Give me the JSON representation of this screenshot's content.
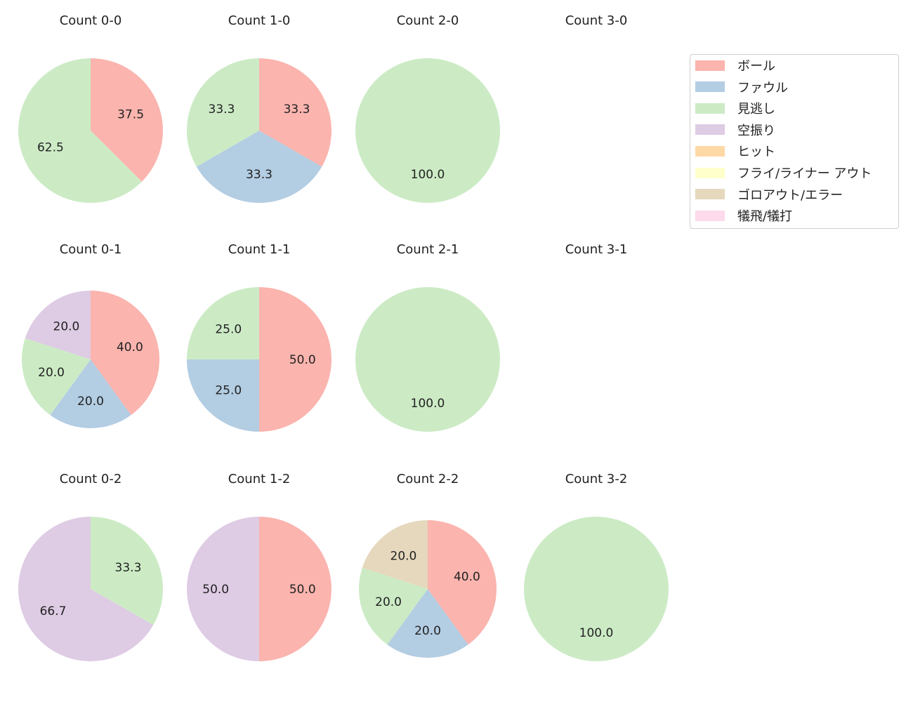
{
  "chart_data": {
    "type": "pie",
    "categories": [
      "ボール",
      "ファウル",
      "見逃し",
      "空振り",
      "ヒット",
      "フライ/ライナー アウト",
      "ゴロアウト/エラー",
      "犠飛/犠打"
    ],
    "colors": [
      "#fbb4ae",
      "#b3cde3",
      "#ccebc5",
      "#decbe4",
      "#fed9a6",
      "#ffffcc",
      "#e5d8bd",
      "#fddaec"
    ],
    "legend_position": "right",
    "start_angle": 90,
    "direction": "clockwise",
    "charts": [
      {
        "title": "Count 0-0",
        "values": [
          37.5,
          0,
          62.5,
          0,
          0,
          0,
          0,
          0
        ]
      },
      {
        "title": "Count 1-0",
        "values": [
          33.3,
          33.3,
          33.3,
          0,
          0,
          0,
          0,
          0
        ]
      },
      {
        "title": "Count 2-0",
        "values": [
          0,
          0,
          100,
          0,
          0,
          0,
          0,
          0
        ]
      },
      {
        "title": "Count 3-0",
        "values": []
      },
      {
        "title": "Count 0-1",
        "values": [
          40,
          20,
          20,
          20,
          0,
          0,
          0,
          0
        ]
      },
      {
        "title": "Count 1-1",
        "values": [
          50,
          25,
          25,
          0,
          0,
          0,
          0,
          0
        ]
      },
      {
        "title": "Count 2-1",
        "values": [
          0,
          0,
          100,
          0,
          0,
          0,
          0,
          0
        ]
      },
      {
        "title": "Count 3-1",
        "values": []
      },
      {
        "title": "Count 0-2",
        "values": [
          0,
          0,
          33.3,
          66.7,
          0,
          0,
          0,
          0
        ]
      },
      {
        "title": "Count 1-2",
        "values": [
          50,
          0,
          0,
          50,
          0,
          0,
          0,
          0
        ]
      },
      {
        "title": "Count 2-2",
        "values": [
          40,
          20,
          20,
          0,
          0,
          0,
          20,
          0
        ]
      },
      {
        "title": "Count 3-2",
        "values": [
          0,
          0,
          100,
          0,
          0,
          0,
          0,
          0
        ]
      }
    ]
  }
}
